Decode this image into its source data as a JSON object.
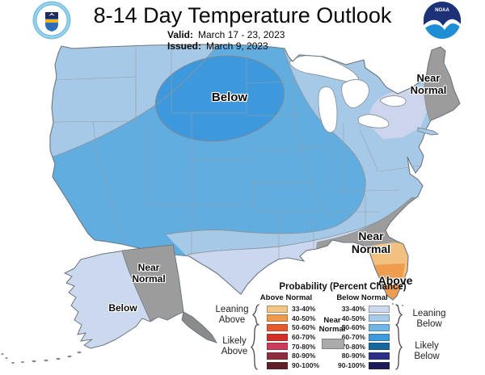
{
  "header": {
    "title": "8-14 Day Temperature Outlook",
    "valid_label": "Valid:",
    "valid_value": "March 17 - 23, 2023",
    "issued_label": "Issued:",
    "issued_value": "March 9, 2023"
  },
  "logos": {
    "nws": {
      "ring": "#7AC1E4",
      "navy": "#1E2A5A",
      "blue": "#2C6FB7",
      "gold": "#F4B223"
    },
    "noaa": {
      "navy": "#1C3177",
      "blue": "#1E8FD5",
      "text": "NOAA"
    }
  },
  "map": {
    "labels": {
      "conus_below": "Below",
      "northeast_near_normal": [
        "Near",
        "Normal"
      ],
      "florida_near_normal": [
        "Near",
        "Normal"
      ],
      "florida_above": "Above",
      "alaska_near_normal": [
        "Near",
        "Normal"
      ],
      "alaska_below": "Below"
    },
    "colors": {
      "below_50_60": "#62ADE0",
      "below_60_70": "#3E98DC",
      "below_40_50": "#A7C9E8",
      "below_33_40": "#CBD7EE",
      "ny_33_40": "#CDD5ED",
      "near_normal_gray": "#9C9C9C",
      "florida_above_33_40": "#F2C17F",
      "florida_above_40_50": "#EE9C4E",
      "alaska_below_33_40": "#CBD8EE",
      "alaska_panhandle_gray": "#8A8C8C",
      "lake_white": "#FFFFFF"
    }
  },
  "legend": {
    "title": "Probability (Percent Chance)",
    "above_header": "Above Normal",
    "below_header": "Below Normal",
    "ranges": [
      "33-40%",
      "40-50%",
      "50-60%",
      "60-70%",
      "70-80%",
      "80-90%",
      "90-100%"
    ],
    "above_colors": [
      "#F4C584",
      "#F09B4C",
      "#E45A2D",
      "#D32D26",
      "#CE3A5B",
      "#8E2C3B",
      "#5F2027"
    ],
    "below_colors": [
      "#CBD8EE",
      "#A8CBE9",
      "#70B5E3",
      "#3D9ADC",
      "#17689E",
      "#2C2F87",
      "#1B1B55"
    ],
    "near_normal_label": [
      "Near",
      "Normal"
    ],
    "near_normal_color": "#ABABAB",
    "groups": {
      "leaning_above": [
        "Leaning",
        "Above"
      ],
      "likely_above": [
        "Likely",
        "Above"
      ],
      "leaning_below": [
        "Leaning",
        "Below"
      ],
      "likely_below": [
        "Likely",
        "Below"
      ]
    }
  }
}
